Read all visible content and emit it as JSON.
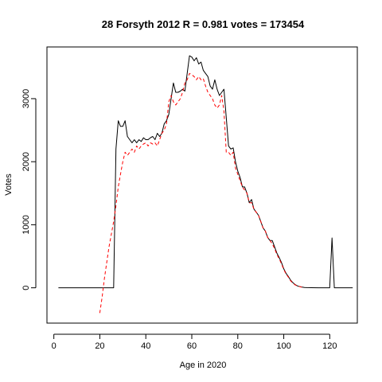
{
  "chart_data": {
    "type": "line",
    "title": "28 Forsyth 2012 R = 0.981 votes = 173454",
    "xlabel": "Age in 2020",
    "ylabel": "Votes",
    "xlim": [
      -3,
      132
    ],
    "ylim": [
      -560,
      3820
    ],
    "x_ticks": [
      0,
      20,
      40,
      60,
      80,
      100,
      120
    ],
    "y_ticks": [
      0,
      1000,
      2000,
      3000
    ],
    "grid": false,
    "legend": "none",
    "series": [
      {
        "color": "#000000",
        "style": "solid",
        "points": [
          [
            2,
            0
          ],
          [
            26,
            0
          ],
          [
            27,
            2200
          ],
          [
            28,
            2650
          ],
          [
            29,
            2560
          ],
          [
            30,
            2560
          ],
          [
            31,
            2650
          ],
          [
            32,
            2400
          ],
          [
            33,
            2350
          ],
          [
            34,
            2300
          ],
          [
            35,
            2350
          ],
          [
            36,
            2300
          ],
          [
            37,
            2350
          ],
          [
            38,
            2320
          ],
          [
            39,
            2380
          ],
          [
            40,
            2350
          ],
          [
            41,
            2350
          ],
          [
            42,
            2380
          ],
          [
            43,
            2400
          ],
          [
            44,
            2350
          ],
          [
            45,
            2450
          ],
          [
            46,
            2400
          ],
          [
            47,
            2450
          ],
          [
            48,
            2600
          ],
          [
            49,
            2650
          ],
          [
            50,
            2750
          ],
          [
            51,
            3000
          ],
          [
            52,
            3250
          ],
          [
            53,
            3100
          ],
          [
            54,
            3100
          ],
          [
            55,
            3120
          ],
          [
            56,
            3150
          ],
          [
            57,
            3120
          ],
          [
            58,
            3400
          ],
          [
            59,
            3680
          ],
          [
            60,
            3660
          ],
          [
            61,
            3600
          ],
          [
            62,
            3650
          ],
          [
            63,
            3550
          ],
          [
            64,
            3580
          ],
          [
            65,
            3450
          ],
          [
            66,
            3400
          ],
          [
            67,
            3350
          ],
          [
            68,
            3200
          ],
          [
            69,
            3150
          ],
          [
            70,
            3300
          ],
          [
            71,
            3150
          ],
          [
            72,
            3050
          ],
          [
            73,
            3100
          ],
          [
            74,
            3150
          ],
          [
            75,
            2700
          ],
          [
            76,
            2250
          ],
          [
            77,
            2200
          ],
          [
            78,
            2220
          ],
          [
            79,
            2000
          ],
          [
            80,
            1850
          ],
          [
            81,
            1750
          ],
          [
            82,
            1600
          ],
          [
            83,
            1600
          ],
          [
            84,
            1500
          ],
          [
            85,
            1350
          ],
          [
            86,
            1400
          ],
          [
            87,
            1250
          ],
          [
            88,
            1200
          ],
          [
            89,
            1150
          ],
          [
            90,
            1050
          ],
          [
            91,
            950
          ],
          [
            92,
            900
          ],
          [
            93,
            800
          ],
          [
            94,
            750
          ],
          [
            95,
            750
          ],
          [
            96,
            650
          ],
          [
            97,
            550
          ],
          [
            98,
            480
          ],
          [
            99,
            400
          ],
          [
            100,
            300
          ],
          [
            101,
            230
          ],
          [
            102,
            180
          ],
          [
            103,
            120
          ],
          [
            104,
            80
          ],
          [
            105,
            50
          ],
          [
            106,
            30
          ],
          [
            107,
            20
          ],
          [
            108,
            10
          ],
          [
            109,
            5
          ],
          [
            110,
            3
          ],
          [
            112,
            2
          ],
          [
            115,
            1
          ],
          [
            118,
            0
          ],
          [
            120,
            0
          ],
          [
            121,
            790
          ],
          [
            122,
            0
          ],
          [
            130,
            0
          ]
        ]
      },
      {
        "color": "#ff0000",
        "style": "dashed",
        "points": [
          [
            20,
            -400
          ],
          [
            21,
            -150
          ],
          [
            22,
            150
          ],
          [
            23,
            400
          ],
          [
            24,
            650
          ],
          [
            25,
            850
          ],
          [
            26,
            1050
          ],
          [
            27,
            1300
          ],
          [
            28,
            1600
          ],
          [
            29,
            1800
          ],
          [
            30,
            2000
          ],
          [
            31,
            2150
          ],
          [
            32,
            2100
          ],
          [
            33,
            2150
          ],
          [
            34,
            2200
          ],
          [
            35,
            2150
          ],
          [
            36,
            2250
          ],
          [
            37,
            2200
          ],
          [
            38,
            2250
          ],
          [
            39,
            2280
          ],
          [
            40,
            2300
          ],
          [
            41,
            2250
          ],
          [
            42,
            2300
          ],
          [
            43,
            2280
          ],
          [
            44,
            2300
          ],
          [
            45,
            2250
          ],
          [
            46,
            2350
          ],
          [
            47,
            2450
          ],
          [
            48,
            2500
          ],
          [
            49,
            2600
          ],
          [
            50,
            2950
          ],
          [
            51,
            3050
          ],
          [
            52,
            2950
          ],
          [
            53,
            2900
          ],
          [
            54,
            2950
          ],
          [
            55,
            3000
          ],
          [
            56,
            3100
          ],
          [
            57,
            3250
          ],
          [
            58,
            3300
          ],
          [
            59,
            3400
          ],
          [
            60,
            3380
          ],
          [
            61,
            3350
          ],
          [
            62,
            3300
          ],
          [
            63,
            3350
          ],
          [
            64,
            3300
          ],
          [
            65,
            3320
          ],
          [
            66,
            3200
          ],
          [
            67,
            3100
          ],
          [
            68,
            3050
          ],
          [
            69,
            3000
          ],
          [
            70,
            2900
          ],
          [
            71,
            2850
          ],
          [
            72,
            2900
          ],
          [
            73,
            3050
          ],
          [
            74,
            2800
          ],
          [
            75,
            2150
          ],
          [
            76,
            2150
          ],
          [
            77,
            2100
          ],
          [
            78,
            2150
          ],
          [
            79,
            1900
          ],
          [
            80,
            1800
          ],
          [
            81,
            1700
          ],
          [
            82,
            1600
          ],
          [
            83,
            1550
          ],
          [
            84,
            1500
          ],
          [
            85,
            1350
          ],
          [
            86,
            1350
          ],
          [
            87,
            1250
          ],
          [
            88,
            1200
          ],
          [
            89,
            1150
          ],
          [
            90,
            1050
          ],
          [
            91,
            950
          ],
          [
            92,
            900
          ],
          [
            93,
            800
          ],
          [
            94,
            750
          ],
          [
            95,
            700
          ],
          [
            96,
            620
          ],
          [
            97,
            530
          ],
          [
            98,
            460
          ],
          [
            99,
            380
          ],
          [
            100,
            290
          ],
          [
            101,
            220
          ],
          [
            102,
            170
          ],
          [
            103,
            110
          ],
          [
            104,
            75
          ],
          [
            105,
            45
          ],
          [
            106,
            28
          ],
          [
            107,
            18
          ],
          [
            108,
            8
          ]
        ]
      }
    ]
  }
}
